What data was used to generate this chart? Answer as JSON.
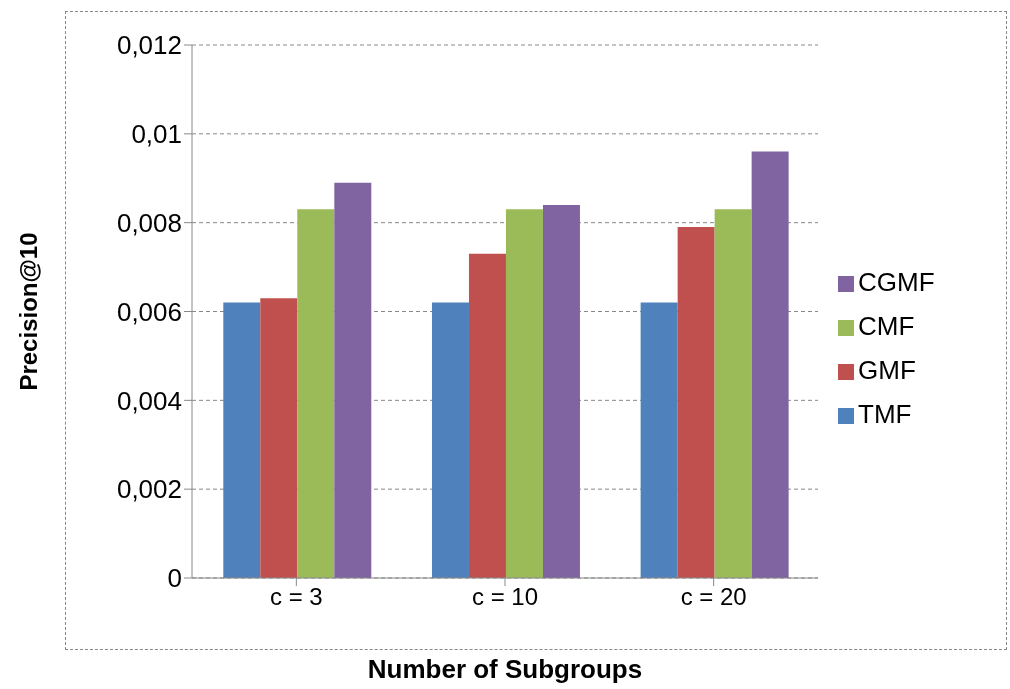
{
  "chart_data": {
    "type": "bar",
    "xlabel": "Number of Subgroups",
    "ylabel": "Precision@10",
    "categories": [
      "c = 3",
      "c = 10",
      "c = 20"
    ],
    "series": [
      {
        "name": "TMF",
        "color": "#4f81bd",
        "values": [
          0.0062,
          0.0062,
          0.0062
        ]
      },
      {
        "name": "GMF",
        "color": "#c0504d",
        "values": [
          0.0063,
          0.0073,
          0.0079
        ]
      },
      {
        "name": "CMF",
        "color": "#9bbb59",
        "values": [
          0.0083,
          0.0083,
          0.0083
        ]
      },
      {
        "name": "CGMF",
        "color": "#8064a2",
        "values": [
          0.0089,
          0.0084,
          0.0096
        ]
      }
    ],
    "ylim": [
      0,
      0.012
    ],
    "yticks": [
      {
        "value": 0,
        "label": "0"
      },
      {
        "value": 0.002,
        "label": "0,002"
      },
      {
        "value": 0.004,
        "label": "0,004"
      },
      {
        "value": 0.006,
        "label": "0,006"
      },
      {
        "value": 0.008,
        "label": "0,008"
      },
      {
        "value": 0.01,
        "label": "0,01"
      },
      {
        "value": 0.012,
        "label": "0,012"
      }
    ],
    "grid": "y",
    "legend": "right"
  }
}
